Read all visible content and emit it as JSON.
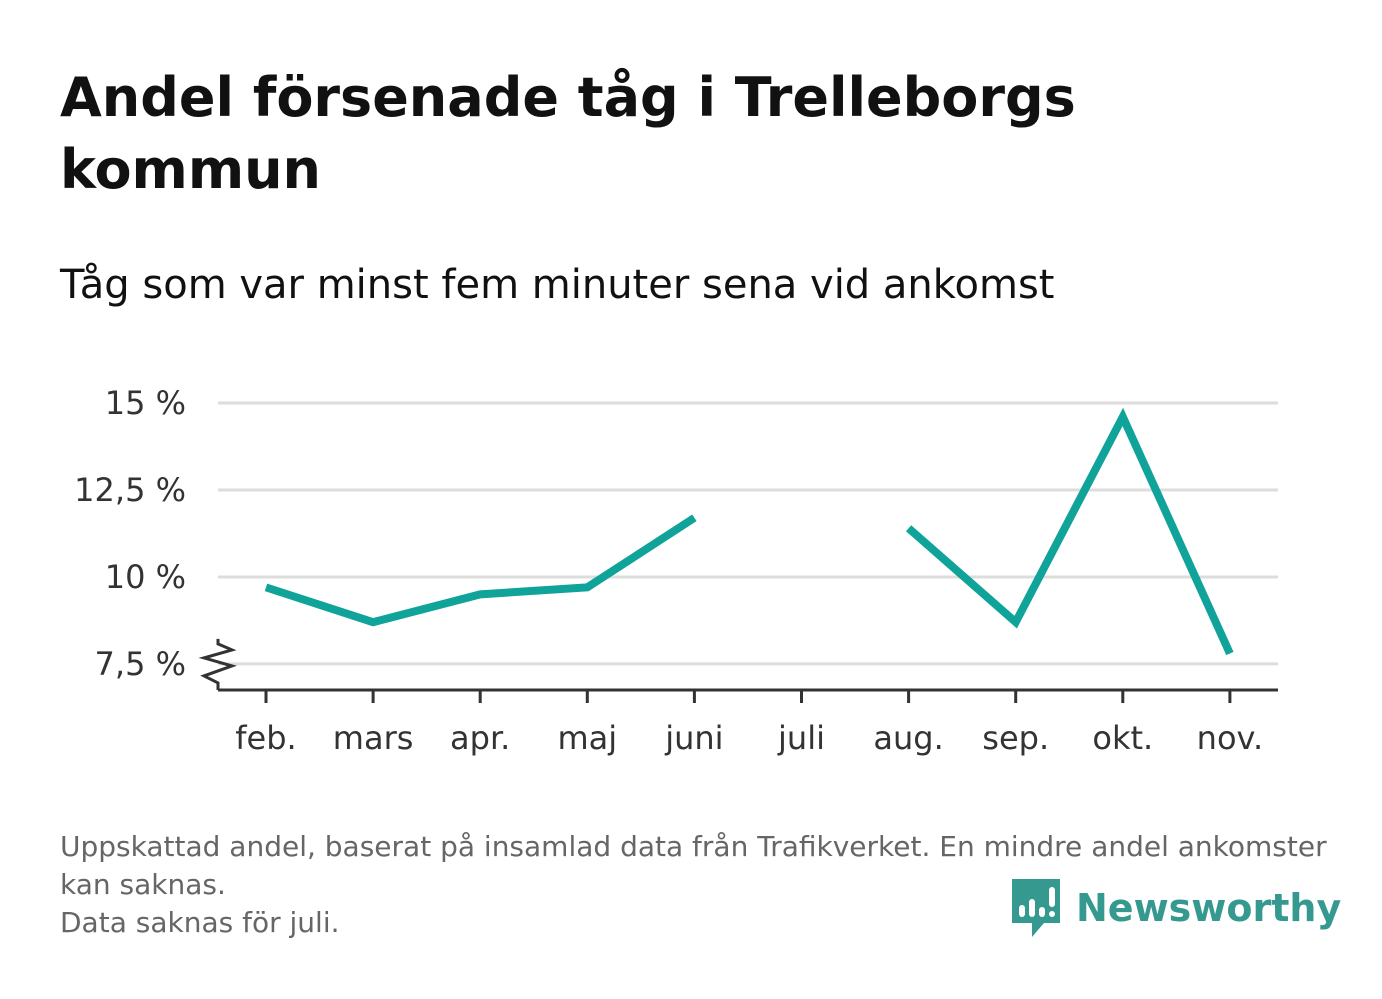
{
  "header": {
    "title": "Andel försenade tåg i Trelleborgs kommun",
    "subtitle": "Tåg som var minst fem minuter sena vid ankomst"
  },
  "footer": {
    "note_line1": "Uppskattad andel, baserat på insamlad data från Trafikverket. En mindre andel ankomster kan saknas.",
    "note_line2": "Data saknas för juli.",
    "brand": "Newsworthy",
    "brand_icon": "bar-chart-speech-bubble-icon"
  },
  "colors": {
    "line": "#0fa39a",
    "grid": "#dddddd",
    "axis": "#333333",
    "brand": "#35998f"
  },
  "chart_data": {
    "type": "line",
    "categories": [
      "feb.",
      "mars",
      "apr.",
      "maj",
      "juni",
      "juli",
      "aug.",
      "sep.",
      "okt.",
      "nov."
    ],
    "series": [
      {
        "values": [
          9.7,
          8.7,
          9.5,
          9.7,
          11.7,
          null,
          11.4,
          8.7,
          14.6,
          7.8
        ]
      }
    ],
    "yticks": [
      7.5,
      10,
      12.5,
      15
    ],
    "ytick_labels": [
      "7,5 %",
      "10 %",
      "12,5 %",
      "15 %"
    ],
    "ylim": [
      6.75,
      15
    ],
    "y_axis_break": true,
    "grid": true,
    "legend": "none",
    "xlabel": "",
    "ylabel": ""
  }
}
